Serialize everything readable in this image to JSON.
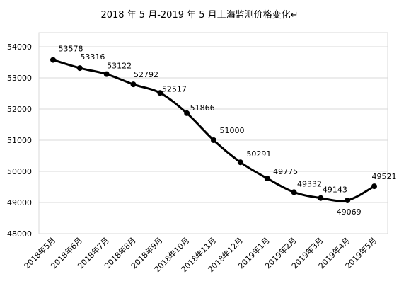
{
  "chart_data": {
    "type": "line",
    "title": "2018 年 5 月-2019 年 5 月上海监测价格变化↵",
    "xlabel": "",
    "ylabel": "",
    "categories": [
      "2018年5月",
      "2018年6月",
      "2018年7月",
      "2018年8月",
      "2018年9月",
      "2018年10月",
      "2018年11月",
      "2018年12月",
      "2019年1月",
      "2019年2月",
      "2019年3月",
      "2019年4月",
      "2019年5月"
    ],
    "series": [
      {
        "values": [
          53578,
          53316,
          53122,
          52792,
          52517,
          51866,
          51000,
          50291,
          49775,
          49332,
          49143,
          49069,
          49521
        ]
      }
    ],
    "data_labels": [
      "53578",
      "53316",
      "53122",
      "52792",
      "52517",
      "51866",
      "51000",
      "50291",
      "49775",
      "49332",
      "49143",
      "49069",
      "49521"
    ],
    "ylim": [
      48000,
      54000
    ],
    "yticks": [
      48000,
      49000,
      50000,
      51000,
      52000,
      53000,
      54000
    ],
    "ytick_labels": [
      "48000",
      "49000",
      "50000",
      "51000",
      "52000",
      "53000",
      "54000"
    ],
    "grid": true,
    "legend": "none",
    "colors": {
      "line": "#000000",
      "grid": "#d9d9d9",
      "text": "#000000"
    }
  }
}
